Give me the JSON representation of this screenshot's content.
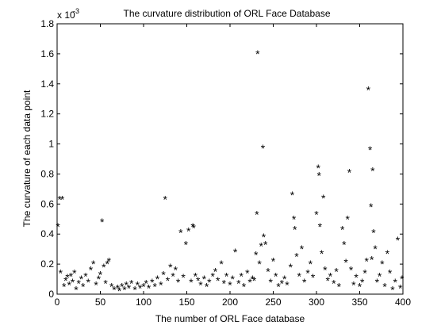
{
  "chart_data": {
    "type": "scatter",
    "title": "The curvature distribution of ORL Face Database",
    "xlabel": "The number of ORL Face database",
    "ylabel": "The curvature of each data point",
    "y_scale_factor_label": "x 10",
    "y_scale_exponent": "-3",
    "xlim": [
      0,
      400
    ],
    "ylim": [
      0,
      1.8
    ],
    "xticks": [
      "0",
      "50",
      "100",
      "150",
      "200",
      "250",
      "300",
      "350",
      "400"
    ],
    "yticks": [
      "0",
      "0.2",
      "0.4",
      "0.6",
      "0.8",
      "1",
      "1.2",
      "1.4",
      "1.6",
      "1.8"
    ],
    "grid": false,
    "legend": "none",
    "marker": "*",
    "marker_color": "#000000",
    "points": [
      [
        1,
        0.45
      ],
      [
        3,
        0.63
      ],
      [
        6,
        0.63
      ],
      [
        4,
        0.14
      ],
      [
        8,
        0.05
      ],
      [
        10,
        0.09
      ],
      [
        12,
        0.11
      ],
      [
        14,
        0.06
      ],
      [
        16,
        0.12
      ],
      [
        18,
        0.08
      ],
      [
        20,
        0.14
      ],
      [
        22,
        0.03
      ],
      [
        25,
        0.07
      ],
      [
        28,
        0.1
      ],
      [
        30,
        0.05
      ],
      [
        33,
        0.12
      ],
      [
        36,
        0.08
      ],
      [
        39,
        0.16
      ],
      [
        42,
        0.2
      ],
      [
        45,
        0.06
      ],
      [
        48,
        0.1
      ],
      [
        50,
        0.13
      ],
      [
        52,
        0.48
      ],
      [
        54,
        0.18
      ],
      [
        56,
        0.07
      ],
      [
        58,
        0.2
      ],
      [
        60,
        0.22
      ],
      [
        63,
        0.05
      ],
      [
        66,
        0.03
      ],
      [
        70,
        0.04
      ],
      [
        72,
        0.02
      ],
      [
        75,
        0.05
      ],
      [
        78,
        0.03
      ],
      [
        80,
        0.06
      ],
      [
        83,
        0.04
      ],
      [
        86,
        0.07
      ],
      [
        90,
        0.03
      ],
      [
        93,
        0.06
      ],
      [
        96,
        0.04
      ],
      [
        100,
        0.05
      ],
      [
        103,
        0.07
      ],
      [
        106,
        0.04
      ],
      [
        110,
        0.08
      ],
      [
        113,
        0.05
      ],
      [
        116,
        0.1
      ],
      [
        120,
        0.06
      ],
      [
        123,
        0.13
      ],
      [
        125,
        0.63
      ],
      [
        128,
        0.09
      ],
      [
        131,
        0.18
      ],
      [
        134,
        0.12
      ],
      [
        137,
        0.16
      ],
      [
        140,
        0.08
      ],
      [
        143,
        0.41
      ],
      [
        146,
        0.11
      ],
      [
        149,
        0.33
      ],
      [
        152,
        0.42
      ],
      [
        155,
        0.08
      ],
      [
        157,
        0.45
      ],
      [
        158,
        0.44
      ],
      [
        160,
        0.12
      ],
      [
        163,
        0.09
      ],
      [
        166,
        0.06
      ],
      [
        170,
        0.1
      ],
      [
        173,
        0.05
      ],
      [
        176,
        0.08
      ],
      [
        180,
        0.12
      ],
      [
        183,
        0.15
      ],
      [
        186,
        0.09
      ],
      [
        190,
        0.2
      ],
      [
        193,
        0.07
      ],
      [
        196,
        0.12
      ],
      [
        200,
        0.06
      ],
      [
        203,
        0.1
      ],
      [
        206,
        0.28
      ],
      [
        210,
        0.07
      ],
      [
        213,
        0.12
      ],
      [
        216,
        0.05
      ],
      [
        220,
        0.14
      ],
      [
        223,
        0.08
      ],
      [
        226,
        0.1
      ],
      [
        228,
        0.09
      ],
      [
        230,
        0.26
      ],
      [
        231,
        0.53
      ],
      [
        232,
        1.6
      ],
      [
        234,
        0.2
      ],
      [
        236,
        0.32
      ],
      [
        238,
        0.97
      ],
      [
        239,
        0.38
      ],
      [
        241,
        0.33
      ],
      [
        244,
        0.15
      ],
      [
        247,
        0.08
      ],
      [
        250,
        0.22
      ],
      [
        253,
        0.12
      ],
      [
        256,
        0.05
      ],
      [
        260,
        0.07
      ],
      [
        263,
        0.1
      ],
      [
        266,
        0.06
      ],
      [
        270,
        0.18
      ],
      [
        272,
        0.66
      ],
      [
        274,
        0.5
      ],
      [
        275,
        0.43
      ],
      [
        277,
        0.25
      ],
      [
        280,
        0.12
      ],
      [
        283,
        0.3
      ],
      [
        286,
        0.08
      ],
      [
        290,
        0.14
      ],
      [
        293,
        0.2
      ],
      [
        296,
        0.11
      ],
      [
        300,
        0.53
      ],
      [
        302,
        0.84
      ],
      [
        303,
        0.79
      ],
      [
        304,
        0.45
      ],
      [
        306,
        0.27
      ],
      [
        308,
        0.64
      ],
      [
        310,
        0.16
      ],
      [
        313,
        0.09
      ],
      [
        316,
        0.12
      ],
      [
        320,
        0.07
      ],
      [
        323,
        0.15
      ],
      [
        326,
        0.05
      ],
      [
        330,
        0.43
      ],
      [
        332,
        0.33
      ],
      [
        334,
        0.21
      ],
      [
        336,
        0.5
      ],
      [
        338,
        0.81
      ],
      [
        340,
        0.16
      ],
      [
        343,
        0.06
      ],
      [
        346,
        0.11
      ],
      [
        350,
        0.05
      ],
      [
        353,
        0.08
      ],
      [
        356,
        0.14
      ],
      [
        358,
        0.22
      ],
      [
        360,
        1.36
      ],
      [
        362,
        0.96
      ],
      [
        363,
        0.58
      ],
      [
        364,
        0.23
      ],
      [
        365,
        0.82
      ],
      [
        366,
        0.41
      ],
      [
        368,
        0.3
      ],
      [
        370,
        0.08
      ],
      [
        373,
        0.12
      ],
      [
        376,
        0.2
      ],
      [
        379,
        0.05
      ],
      [
        382,
        0.27
      ],
      [
        385,
        0.14
      ],
      [
        388,
        0.03
      ],
      [
        391,
        0.08
      ],
      [
        394,
        0.36
      ],
      [
        397,
        0.04
      ],
      [
        399,
        0.1
      ]
    ]
  }
}
